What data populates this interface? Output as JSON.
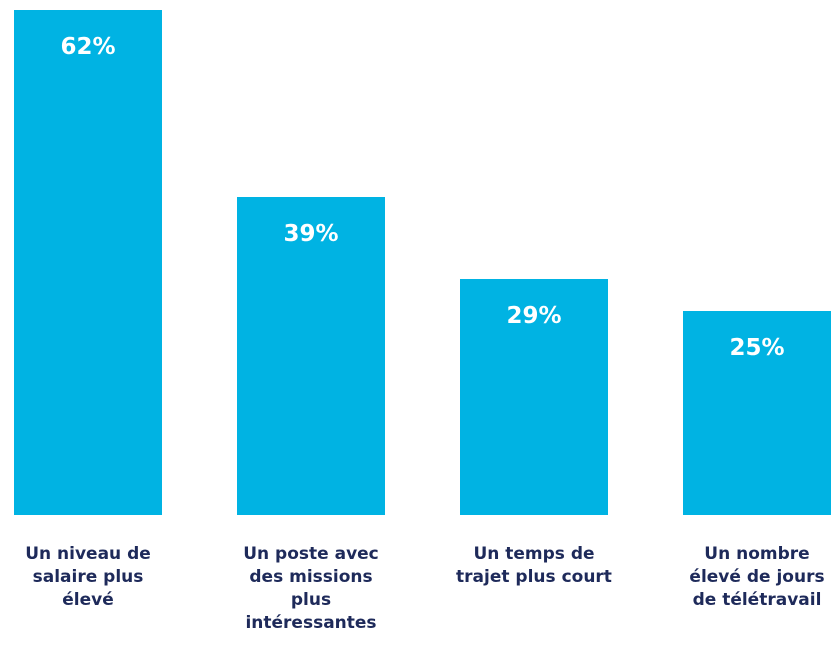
{
  "chart_data": {
    "type": "bar",
    "categories": [
      "Un niveau de salaire plus élevé",
      "Un poste avec des missions plus intéressantes",
      "Un temps de trajet plus court",
      "Un nombre élevé de jours de télétravail"
    ],
    "values": [
      62,
      39,
      29,
      25
    ],
    "value_labels": [
      "62%",
      "39%",
      "29%",
      "25%"
    ],
    "color": "#00b3e3"
  }
}
